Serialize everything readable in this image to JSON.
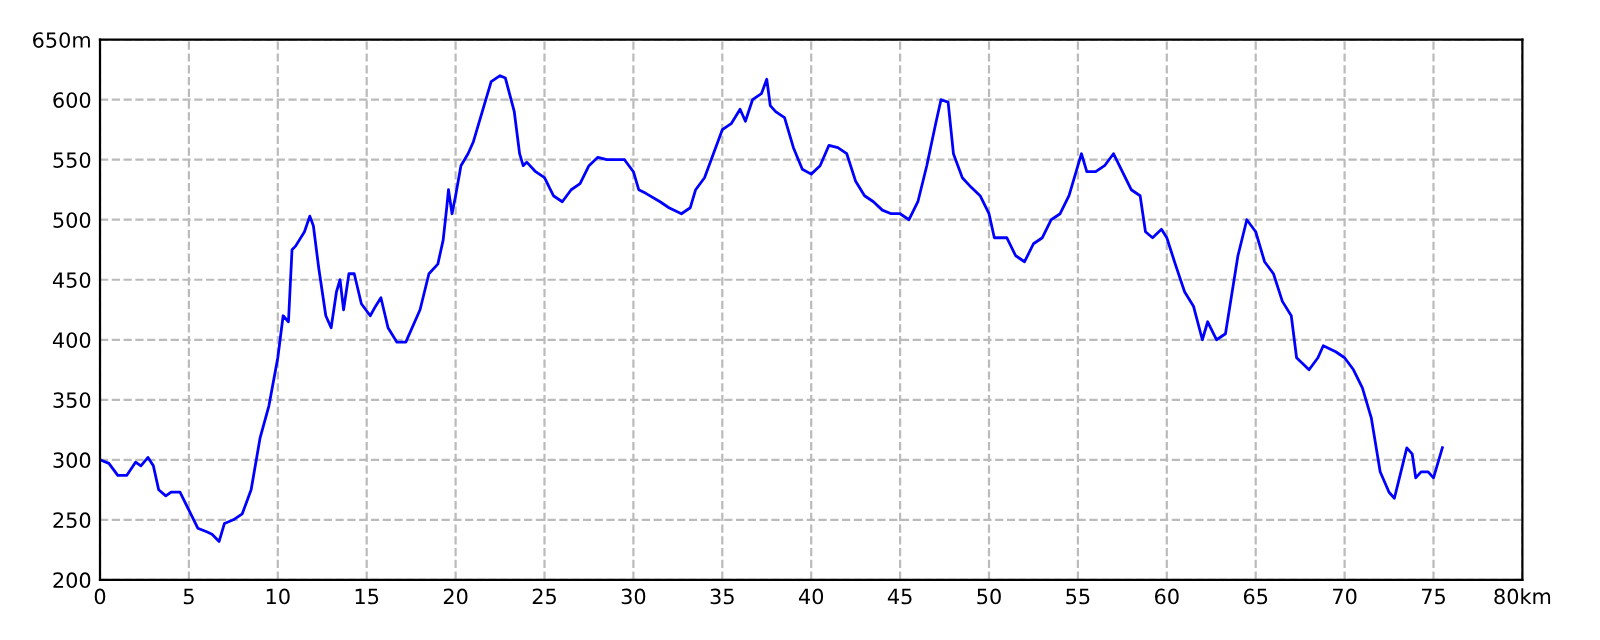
{
  "chart_data": {
    "type": "line",
    "xlim": [
      0,
      80
    ],
    "ylim": [
      200,
      650
    ],
    "xticks": [
      0,
      5,
      10,
      15,
      20,
      25,
      30,
      35,
      40,
      45,
      50,
      55,
      60,
      65,
      70,
      75,
      {
        "value": 80,
        "label": "80km"
      }
    ],
    "yticks": [
      200,
      250,
      300,
      350,
      400,
      450,
      500,
      550,
      600,
      {
        "value": 650,
        "label": "650m"
      }
    ],
    "grid": true,
    "marker": "none",
    "line_style": "solid",
    "series": [
      {
        "color": "#0000ff",
        "x": [
          0,
          0.5,
          1,
          1.5,
          2,
          2.3,
          2.7,
          3,
          3.3,
          3.7,
          4,
          4.5,
          5,
          5.5,
          6,
          6.3,
          6.7,
          7,
          7.5,
          8,
          8.5,
          9,
          9.5,
          10,
          10.3,
          10.6,
          10.8,
          11,
          11.5,
          11.8,
          12,
          12.3,
          12.7,
          13,
          13.3,
          13.5,
          13.7,
          14,
          14.3,
          14.7,
          15.2,
          15.5,
          15.8,
          16.2,
          16.7,
          17.2,
          18,
          18.5,
          19,
          19.3,
          19.5,
          19.6,
          19.8,
          20,
          20.3,
          20.7,
          21,
          21.5,
          22,
          22.5,
          22.8,
          23.3,
          23.6,
          23.8,
          24,
          24.5,
          25,
          25.5,
          26,
          26.5,
          27,
          27.5,
          28,
          28.5,
          29,
          29.5,
          30,
          30.3,
          30.7,
          31.5,
          32,
          32.7,
          33.2,
          33.5,
          34,
          34.5,
          35,
          35.5,
          36,
          36.3,
          36.7,
          37.2,
          37.5,
          37.7,
          38,
          38.5,
          39,
          39.5,
          40,
          40.5,
          41,
          41.5,
          42,
          42.5,
          43,
          43.5,
          44,
          44.5,
          45,
          45.5,
          46,
          46.5,
          47,
          47.3,
          47.7,
          48,
          48.5,
          49,
          49.5,
          50,
          50.3,
          51,
          51.5,
          52,
          52.5,
          53,
          53.5,
          54,
          54.5,
          55,
          55.2,
          55.5,
          56,
          56.5,
          57,
          57.5,
          58,
          58.5,
          58.8,
          59.2,
          59.7,
          60,
          60.5,
          61,
          61.5,
          62,
          62.3,
          62.8,
          63.3,
          64,
          64.5,
          65,
          65.5,
          66,
          66.5,
          67,
          67.3,
          68,
          68.5,
          68.8,
          69.5,
          70,
          70.5,
          71,
          71.5,
          72,
          72.5,
          72.8,
          73,
          73.5,
          73.8,
          74,
          74.3,
          74.7,
          75,
          75.5
        ],
        "values": [
          300,
          297,
          287,
          287,
          298,
          295,
          302,
          295,
          275,
          270,
          273,
          273,
          258,
          243,
          240,
          238,
          232,
          247,
          250,
          255,
          275,
          318,
          345,
          385,
          420,
          415,
          475,
          478,
          490,
          503,
          495,
          460,
          420,
          410,
          440,
          450,
          425,
          455,
          455,
          430,
          420,
          428,
          435,
          410,
          398,
          398,
          425,
          455,
          463,
          483,
          510,
          525,
          505,
          520,
          545,
          555,
          565,
          590,
          615,
          620,
          618,
          590,
          555,
          545,
          548,
          540,
          535,
          520,
          515,
          525,
          530,
          545,
          552,
          550,
          550,
          550,
          540,
          525,
          522,
          515,
          510,
          505,
          510,
          525,
          535,
          555,
          575,
          580,
          592,
          582,
          600,
          605,
          617,
          595,
          590,
          585,
          560,
          542,
          538,
          545,
          562,
          560,
          555,
          532,
          520,
          515,
          508,
          505,
          505,
          500,
          515,
          545,
          580,
          600,
          598,
          555,
          535,
          527,
          520,
          505,
          485,
          485,
          470,
          465,
          480,
          485,
          500,
          505,
          520,
          545,
          555,
          540,
          540,
          545,
          555,
          540,
          525,
          520,
          490,
          485,
          492,
          485,
          462,
          440,
          428,
          400,
          415,
          400,
          405,
          470,
          500,
          490,
          465,
          455,
          432,
          420,
          385,
          375,
          385,
          395,
          390,
          385,
          375,
          360,
          335,
          290,
          273,
          268,
          280,
          310,
          305,
          285,
          290,
          290,
          285,
          310
        ]
      }
    ]
  }
}
